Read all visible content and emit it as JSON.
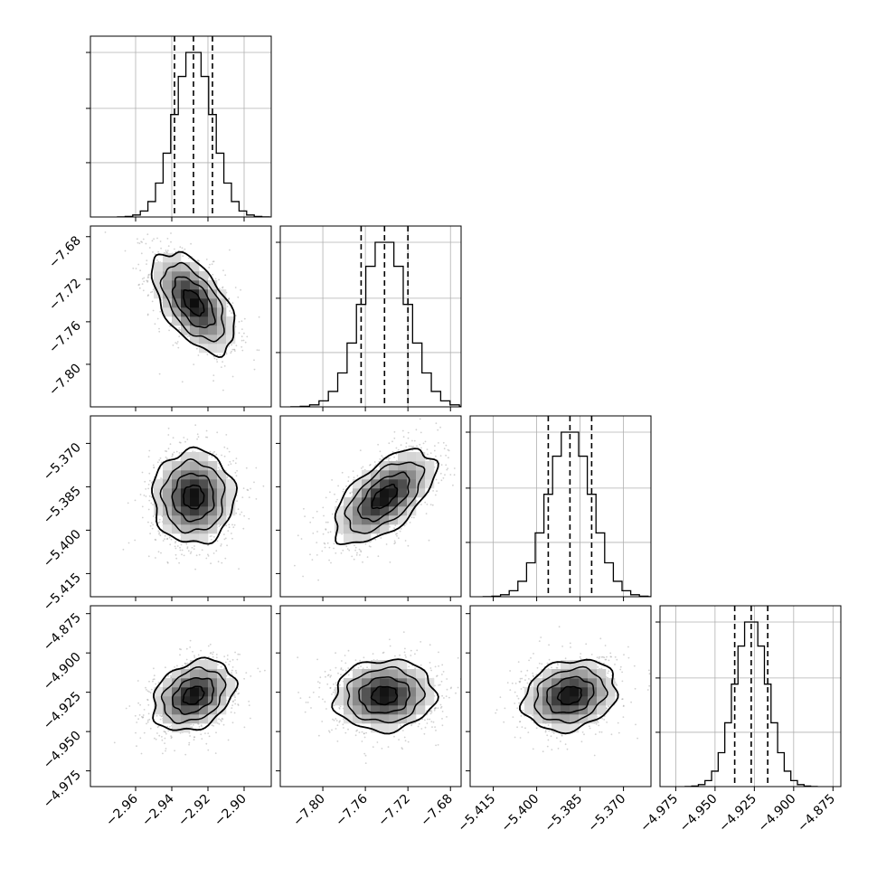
{
  "chart_data": {
    "type": "corner",
    "parameters": [
      {
        "center": -2.928,
        "std": 0.0105,
        "quantiles": [
          -2.9385,
          -2.928,
          -2.9175
        ],
        "range": [
          -2.985,
          -2.885
        ],
        "ticks": [
          -2.96,
          -2.94,
          -2.92,
          -2.9
        ],
        "tick_labels": [
          "−2.96",
          "−2.94",
          "−2.92",
          "−2.90"
        ]
      },
      {
        "center": -7.742,
        "std": 0.022,
        "quantiles": [
          -7.764,
          -7.742,
          -7.72
        ],
        "range": [
          -7.84,
          -7.67
        ],
        "ticks": [
          -7.8,
          -7.76,
          -7.72,
          -7.68
        ],
        "tick_labels": [
          "−7.80",
          "−7.76",
          "−7.72",
          "−7.68"
        ]
      },
      {
        "center": -5.3885,
        "std": 0.0075,
        "quantiles": [
          -5.396,
          -5.3885,
          -5.381
        ],
        "range": [
          -5.423,
          -5.3605
        ],
        "ticks": [
          -5.415,
          -5.4,
          -5.385,
          -5.37
        ],
        "tick_labels": [
          "−5.415",
          "−5.400",
          "−5.385",
          "−5.370"
        ]
      },
      {
        "center": -4.927,
        "std": 0.0105,
        "quantiles": [
          -4.9375,
          -4.927,
          -4.9165
        ],
        "range": [
          -4.985,
          -4.87
        ],
        "ticks": [
          -4.975,
          -4.95,
          -4.925,
          -4.9,
          -4.875
        ],
        "tick_labels": [
          "−4.975",
          "−4.950",
          "−4.925",
          "−4.900",
          "−4.875"
        ]
      }
    ],
    "correlations": [
      [
        1,
        -0.55,
        0.0,
        0.3
      ],
      [
        -0.55,
        1,
        0.6,
        0.05
      ],
      [
        0.0,
        0.6,
        1,
        0.2
      ],
      [
        0.3,
        0.05,
        0.2,
        1
      ]
    ],
    "histogram_bins": 20,
    "contour_levels_sigma": [
      0.5,
      1.0,
      1.5,
      2.0
    ],
    "grid": true,
    "colors": {
      "marginal_line": "#000000",
      "contour": "#000000",
      "scatter": "#9a9a9a",
      "quantile_line": "#000000",
      "grid": "#b0b0b0"
    }
  }
}
